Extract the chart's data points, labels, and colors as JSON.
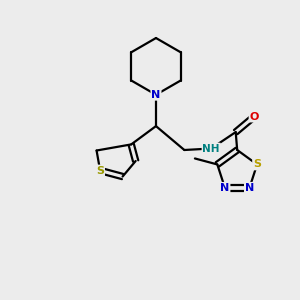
{
  "background_color": "#ececec",
  "bond_color": "#000000",
  "atom_colors": {
    "N": "#0000cc",
    "S_thio": "#999900",
    "S_tdia": "#b8a000",
    "O": "#dd0000",
    "NH": "#008080",
    "C": "#000000"
  },
  "figsize": [
    3.0,
    3.0
  ],
  "dpi": 100,
  "lw": 1.6,
  "font_size": 8.0
}
